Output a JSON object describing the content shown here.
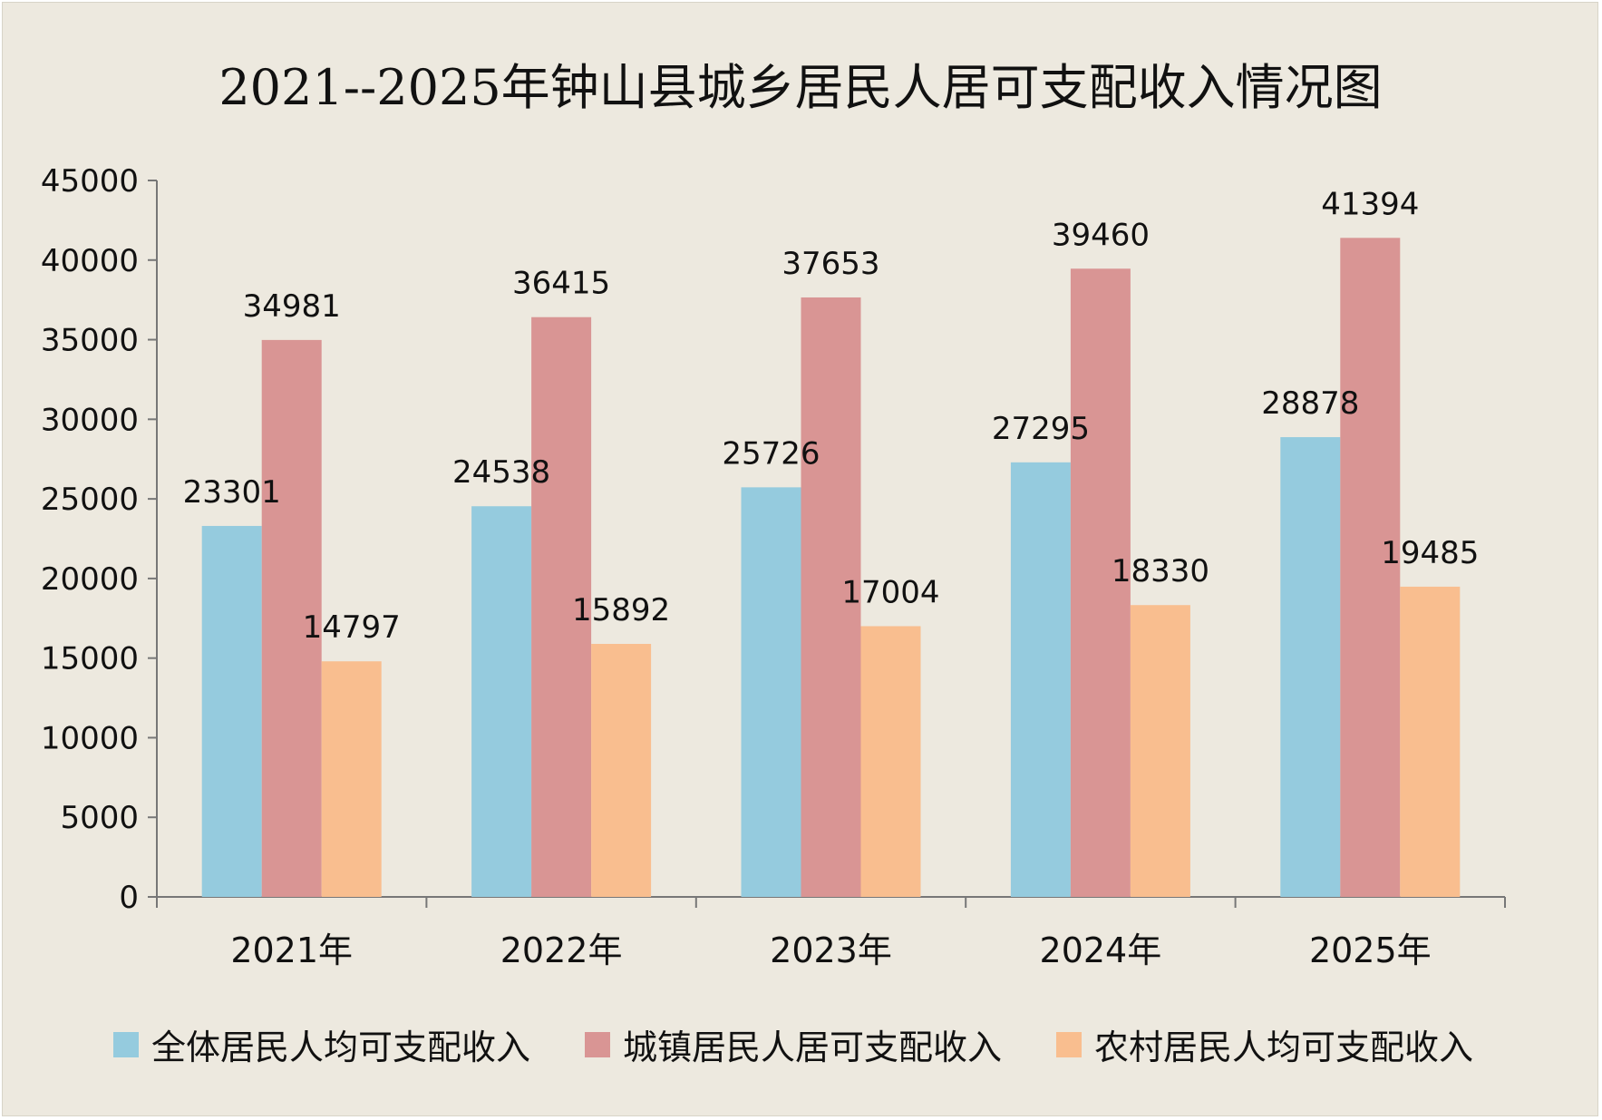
{
  "chart_data": {
    "type": "bar",
    "title": "2021--2025年钟山县城乡居民人居可支配收入情况图",
    "xlabel": "",
    "ylabel": "",
    "categories": [
      "2021年",
      "2022年",
      "2023年",
      "2024年",
      "2025年"
    ],
    "ylim": [
      0,
      45000
    ],
    "yticks": [
      0,
      5000,
      10000,
      15000,
      20000,
      25000,
      30000,
      35000,
      40000,
      45000
    ],
    "grid": false,
    "legend_position": "bottom",
    "series": [
      {
        "name": "全体居民人均可支配收入",
        "color": "#95cbde",
        "values": [
          23301,
          24538,
          25726,
          27295,
          28878
        ]
      },
      {
        "name": "城镇居民人居可支配收入",
        "color": "#d99594",
        "values": [
          34981,
          36415,
          37653,
          39460,
          41394
        ]
      },
      {
        "name": "农村居民人均可支配收入",
        "color": "#f9be8f",
        "values": [
          14797,
          15892,
          17004,
          18330,
          19485
        ]
      }
    ]
  }
}
